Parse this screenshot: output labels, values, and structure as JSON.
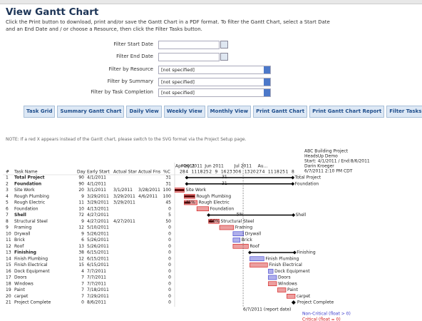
{
  "header": {
    "title": "View Gantt Chart",
    "description": [
      "Click the Print button to download, print and/or save the Gantt Chart in a PDF format. To filter the Gantt Chart, select a Start Date",
      "and an End Date and / or choose a Resource, then click the Filter Tasks button."
    ]
  },
  "filters": [
    {
      "label": "Filter Start Date",
      "kind": "date"
    },
    {
      "label": "Filter End Date",
      "kind": "date"
    },
    {
      "label": "Filter by Resource",
      "kind": "select",
      "value": "[not specified]"
    },
    {
      "label": "Filter by Summary",
      "kind": "select",
      "value": "[not specified]"
    },
    {
      "label": "Filter by Task Completion",
      "kind": "select",
      "value": "[not specified]"
    }
  ],
  "buttons": [
    "Task Grid",
    "Summary Gantt Chart",
    "Daily View",
    "Weekly View",
    "Monthly View",
    "Print Gantt Chart",
    "Print Gantt Chart Report",
    "Filter Tasks"
  ],
  "note": "NOTE: If a red X appears instead of the Gantt chart, please switch to the SVG format via the Project Setup page.",
  "gantt": {
    "info": [
      "ABC Building Project",
      "HeadsUp Demo",
      "Start: 4/1/2011 / End:8/6/2011",
      "Darin Kroeger",
      "6/7/2011 2:10 PM CDT"
    ],
    "columns": [
      "#",
      "Task Name",
      "Day",
      "Early Start",
      "Actual Star",
      "Actual Fns",
      "%C"
    ],
    "months": [
      "Apr 2011",
      "May 2011",
      "Jun 2011",
      "Jul 2011",
      "Au..."
    ],
    "weeks": [
      28,
      4,
      11,
      18,
      25,
      2,
      9,
      16,
      23,
      30,
      6,
      13,
      20,
      27,
      4,
      11,
      18,
      25,
      1,
      8
    ],
    "rows": [
      {
        "id": 1,
        "name": "Total Project",
        "days": 90,
        "early_start": "4/1/2011",
        "actual_start": null,
        "actual_finish": null,
        "pct": 31,
        "summary": true,
        "critical": true,
        "bar_label": "31"
      },
      {
        "id": 2,
        "name": "Foundation",
        "days": 90,
        "early_start": "4/1/2011",
        "actual_start": null,
        "actual_finish": null,
        "pct": 31,
        "summary": true,
        "critical": true,
        "bar_label": "31"
      },
      {
        "id": 3,
        "name": "Site Work",
        "days": 20,
        "early_start": "3/1/2011",
        "actual_start": "3/1/2011",
        "actual_finish": "3/28/2011",
        "pct": 100,
        "summary": false,
        "critical": true
      },
      {
        "id": 4,
        "name": "Rough Plumbing",
        "days": 9,
        "early_start": "3/29/2011",
        "actual_start": "3/29/2011",
        "actual_finish": "4/6/2011",
        "pct": 100,
        "summary": false,
        "critical": true
      },
      {
        "id": 5,
        "name": "Rough Electric",
        "days": 11,
        "early_start": "3/29/2011",
        "actual_start": "3/29/2011",
        "actual_finish": null,
        "pct": 45,
        "summary": false,
        "critical": true,
        "bar_label": "45%"
      },
      {
        "id": 6,
        "name": "Foundation",
        "days": 10,
        "early_start": "4/13/2011",
        "actual_start": null,
        "actual_finish": null,
        "pct": 0,
        "summary": false,
        "critical": true
      },
      {
        "id": 7,
        "name": "Shell",
        "days": 72,
        "early_start": "4/27/2011",
        "actual_start": null,
        "actual_finish": null,
        "pct": 5,
        "summary": true,
        "critical": true,
        "bar_label": "5%"
      },
      {
        "id": 8,
        "name": "Structural Steel",
        "days": 9,
        "early_start": "4/27/2011",
        "actual_start": "4/27/2011",
        "actual_finish": null,
        "pct": 50,
        "summary": false,
        "critical": true,
        "bar_label": "50%"
      },
      {
        "id": 9,
        "name": "Framing",
        "days": 12,
        "early_start": "5/10/2011",
        "actual_start": null,
        "actual_finish": null,
        "pct": 0,
        "summary": false,
        "critical": true
      },
      {
        "id": 10,
        "name": "Drywall",
        "days": 9,
        "early_start": "5/26/2011",
        "actual_start": null,
        "actual_finish": null,
        "pct": 0,
        "summary": false,
        "critical": false
      },
      {
        "id": 11,
        "name": "Brick",
        "days": 6,
        "early_start": "5/26/2011",
        "actual_start": null,
        "actual_finish": null,
        "pct": 0,
        "summary": false,
        "critical": false
      },
      {
        "id": 12,
        "name": "Roof",
        "days": 13,
        "early_start": "5/26/2011",
        "actual_start": null,
        "actual_finish": null,
        "pct": 0,
        "summary": false,
        "critical": true
      },
      {
        "id": 13,
        "name": "Finishing",
        "days": 38,
        "early_start": "6/15/2011",
        "actual_start": null,
        "actual_finish": null,
        "pct": 0,
        "summary": true,
        "critical": true
      },
      {
        "id": 14,
        "name": "Finish Plumbing",
        "days": 12,
        "early_start": "6/15/2011",
        "actual_start": null,
        "actual_finish": null,
        "pct": 0,
        "summary": false,
        "critical": false
      },
      {
        "id": 15,
        "name": "Finish Electrical",
        "days": 15,
        "early_start": "6/15/2011",
        "actual_start": null,
        "actual_finish": null,
        "pct": 0,
        "summary": false,
        "critical": true
      },
      {
        "id": 16,
        "name": "Dock Equipment",
        "days": 4,
        "early_start": "7/7/2011",
        "actual_start": null,
        "actual_finish": null,
        "pct": 0,
        "summary": false,
        "critical": false
      },
      {
        "id": 17,
        "name": "Doors",
        "days": 7,
        "early_start": "7/7/2011",
        "actual_start": null,
        "actual_finish": null,
        "pct": 0,
        "summary": false,
        "critical": false
      },
      {
        "id": 18,
        "name": "Windows",
        "days": 7,
        "early_start": "7/7/2011",
        "actual_start": null,
        "actual_finish": null,
        "pct": 0,
        "summary": false,
        "critical": true
      },
      {
        "id": 19,
        "name": "Paint",
        "days": 7,
        "early_start": "7/18/2011",
        "actual_start": null,
        "actual_finish": null,
        "pct": 0,
        "summary": false,
        "critical": true
      },
      {
        "id": 20,
        "name": "carpet",
        "days": 7,
        "early_start": "7/29/2011",
        "actual_start": null,
        "actual_finish": null,
        "pct": 0,
        "summary": false,
        "critical": true
      },
      {
        "id": 21,
        "name": "Project Complete",
        "days": 0,
        "early_start": "8/6/2011",
        "actual_start": null,
        "actual_finish": null,
        "pct": 0,
        "summary": false,
        "critical": true
      }
    ],
    "report_date": "6/7/2011 (report date)",
    "legend": [
      {
        "label": "Non-Critical (float > 0)",
        "color": "#3a3acc"
      },
      {
        "label": "Critical (float = 0)",
        "color": "#d01010"
      }
    ]
  }
}
